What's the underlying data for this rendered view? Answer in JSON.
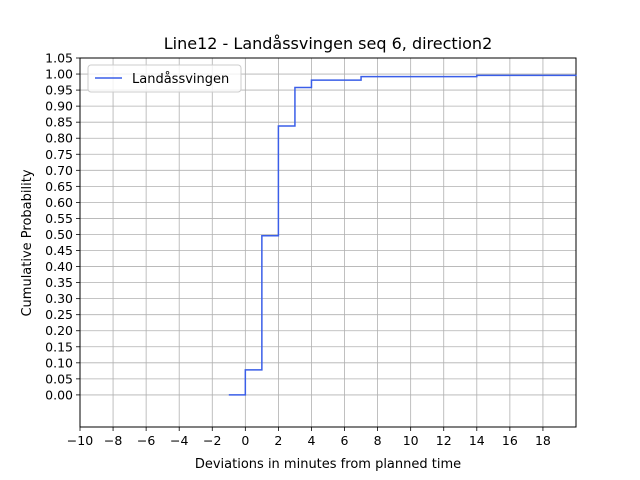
{
  "chart_data": {
    "type": "line",
    "title": "Line12 - Landåssvingen seq 6, direction2",
    "xlabel": "Deviations in minutes from planned time",
    "ylabel": "Cumulative Probability",
    "xlim": [
      -10,
      20
    ],
    "ylim": [
      -0.1,
      1.05
    ],
    "xticks": [
      -10,
      -8,
      -6,
      -4,
      -2,
      0,
      2,
      4,
      6,
      8,
      10,
      12,
      14,
      16,
      18
    ],
    "xtick_labels": [
      "−10",
      "−8",
      "−6",
      "−4",
      "−2",
      "0",
      "2",
      "4",
      "6",
      "8",
      "10",
      "12",
      "14",
      "16",
      "18"
    ],
    "yticks": [
      0.0,
      0.05,
      0.1,
      0.15,
      0.2,
      0.25,
      0.3,
      0.35,
      0.4,
      0.45,
      0.5,
      0.55,
      0.6,
      0.65,
      0.7,
      0.75,
      0.8,
      0.85,
      0.9,
      0.95,
      1.0,
      1.05
    ],
    "ytick_labels": [
      "0.00",
      "0.05",
      "0.10",
      "0.15",
      "0.20",
      "0.25",
      "0.30",
      "0.35",
      "0.40",
      "0.45",
      "0.50",
      "0.55",
      "0.60",
      "0.65",
      "0.70",
      "0.75",
      "0.80",
      "0.85",
      "0.90",
      "0.95",
      "1.00",
      "1.05"
    ],
    "grid": true,
    "legend_position": "top-left",
    "step": "post",
    "series": [
      {
        "name": "Landåssvingen",
        "color": "#3a5ee8",
        "x": [
          -1,
          0,
          1,
          2,
          3,
          4,
          7,
          14,
          20
        ],
        "y": [
          0.0,
          0.078,
          0.496,
          0.838,
          0.958,
          0.981,
          0.992,
          0.996,
          0.998
        ]
      }
    ]
  }
}
